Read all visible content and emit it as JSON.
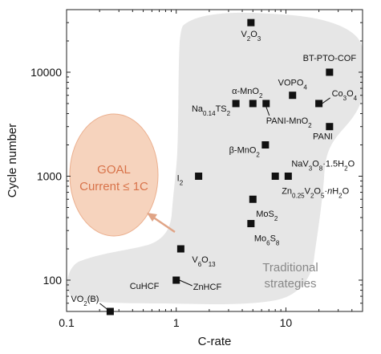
{
  "chart_data": {
    "type": "scatter",
    "xlabel": "C-rate",
    "ylabel": "Cycle number",
    "x_scale": "log",
    "y_scale": "log",
    "xlim": [
      0.1,
      50
    ],
    "ylim": [
      50,
      40000
    ],
    "x_ticks": [
      {
        "value": 0.1,
        "label": "0.1"
      },
      {
        "value": 1,
        "label": "1"
      },
      {
        "value": 10,
        "label": "10"
      }
    ],
    "y_ticks": [
      {
        "value": 100,
        "label": "100"
      },
      {
        "value": 1000,
        "label": "1000"
      },
      {
        "value": 10000,
        "label": "10000"
      }
    ],
    "grid": false,
    "marker_color": "#111111",
    "region_colors": {
      "traditional": "#e6e6e6",
      "goal_fill": "#f3c4a7",
      "goal_text": "#d8734a",
      "goal_arrow": "#e0a486"
    },
    "goal": {
      "line1": "GOAL",
      "line2": "Current ≤ 1C"
    },
    "region_label": {
      "line1": "Traditional",
      "line2": "strategies"
    },
    "points": [
      {
        "name": "V2O3",
        "label": "V<tspan baseline-shift=\"sub\" font-size=\"8\">2</tspan>O<tspan baseline-shift=\"sub\" font-size=\"8\">3</tspan>",
        "x": 4.8,
        "y": 30000
      },
      {
        "name": "BT-PTO-COF",
        "label": "BT-PTO-COF",
        "x": 25,
        "y": 10000
      },
      {
        "name": "VOPO4",
        "label": "VOPO<tspan baseline-shift=\"sub\" font-size=\"8\">4</tspan>",
        "x": 11.5,
        "y": 6000
      },
      {
        "name": "alpha-MnO2",
        "label": "α-MnO<tspan baseline-shift=\"sub\" font-size=\"8\">2</tspan>",
        "x": 5,
        "y": 5000
      },
      {
        "name": "Na0.14TS2",
        "label": "Na<tspan baseline-shift=\"sub\" font-size=\"8\">0.14</tspan>TS<tspan baseline-shift=\"sub\" font-size=\"8\">2</tspan>",
        "x": 3.5,
        "y": 5000
      },
      {
        "name": "PANI-MnO2",
        "label": "PANI-MnO<tspan baseline-shift=\"sub\" font-size=\"8\">2</tspan>",
        "x": 6.6,
        "y": 5000
      },
      {
        "name": "Co3O4",
        "label": "Co<tspan baseline-shift=\"sub\" font-size=\"8\">3</tspan>O<tspan baseline-shift=\"sub\" font-size=\"8\">4</tspan>",
        "x": 20,
        "y": 5000
      },
      {
        "name": "PANI",
        "label": "PANI",
        "x": 25,
        "y": 3000
      },
      {
        "name": "beta-MnO2",
        "label": "β-MnO<tspan baseline-shift=\"sub\" font-size=\"8\">2</tspan>",
        "x": 6.5,
        "y": 2000
      },
      {
        "name": "NaV3O8·1.5H2O",
        "label": "NaV<tspan baseline-shift=\"sub\" font-size=\"8\">3</tspan>O<tspan baseline-shift=\"sub\" font-size=\"8\">8</tspan>·1.5H<tspan baseline-shift=\"sub\" font-size=\"8\">2</tspan>O",
        "x": 10.5,
        "y": 1000
      },
      {
        "name": "Zn0.25V2O5·nH2O",
        "label": "Zn<tspan baseline-shift=\"sub\" font-size=\"8\">0.25</tspan>V<tspan baseline-shift=\"sub\" font-size=\"8\">2</tspan>O<tspan baseline-shift=\"sub\" font-size=\"8\">5</tspan>·<tspan font-style=\"italic\">n</tspan>H<tspan baseline-shift=\"sub\" font-size=\"8\">2</tspan>O",
        "x": 8,
        "y": 1000
      },
      {
        "name": "I2",
        "label": "I<tspan baseline-shift=\"sub\" font-size=\"8\">2</tspan>",
        "x": 1.6,
        "y": 1000
      },
      {
        "name": "MoS2",
        "label": "MoS<tspan baseline-shift=\"sub\" font-size=\"8\">2</tspan>",
        "x": 5,
        "y": 600
      },
      {
        "name": "Mo6S8",
        "label": "Mo<tspan baseline-shift=\"sub\" font-size=\"8\">6</tspan>S<tspan baseline-shift=\"sub\" font-size=\"8\">8</tspan>",
        "x": 4.8,
        "y": 350
      },
      {
        "name": "V6O13",
        "label": "V<tspan baseline-shift=\"sub\" font-size=\"8\">6</tspan>O<tspan baseline-shift=\"sub\" font-size=\"8\">13</tspan>",
        "x": 1.1,
        "y": 200
      },
      {
        "name": "CuHCF",
        "label": "CuHCF",
        "x": 1,
        "y": 100
      },
      {
        "name": "ZnHCF",
        "label": "ZnHCF",
        "x": 1,
        "y": 100
      },
      {
        "name": "VO2(B)",
        "label": "VO<tspan baseline-shift=\"sub\" font-size=\"8\">2</tspan>(B)",
        "x": 0.25,
        "y": 50
      }
    ]
  }
}
